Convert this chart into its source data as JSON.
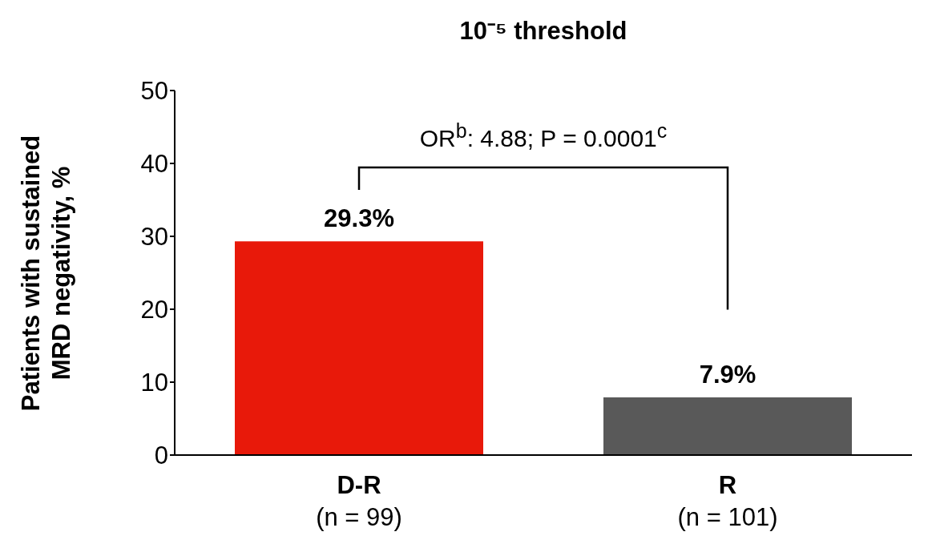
{
  "chart_data": {
    "type": "bar",
    "title": "10⁻⁵ threshold",
    "ylabel": "Patients with sustained MRD negativity, %",
    "categories": [
      "D-R\n(n = 99)",
      "R\n(n = 101)"
    ],
    "values": [
      29.3,
      7.9
    ],
    "colors": [
      "#e8190a",
      "#595959"
    ],
    "value_labels": [
      "29.3%",
      "7.9%"
    ],
    "ylim": [
      0,
      50
    ],
    "yticks": [
      0,
      10,
      20,
      30,
      40,
      50
    ],
    "grid": false,
    "legend": false,
    "annotations": [
      "OR$^{b}$: 4.88; P = 0.0001$^{c}$"
    ]
  }
}
